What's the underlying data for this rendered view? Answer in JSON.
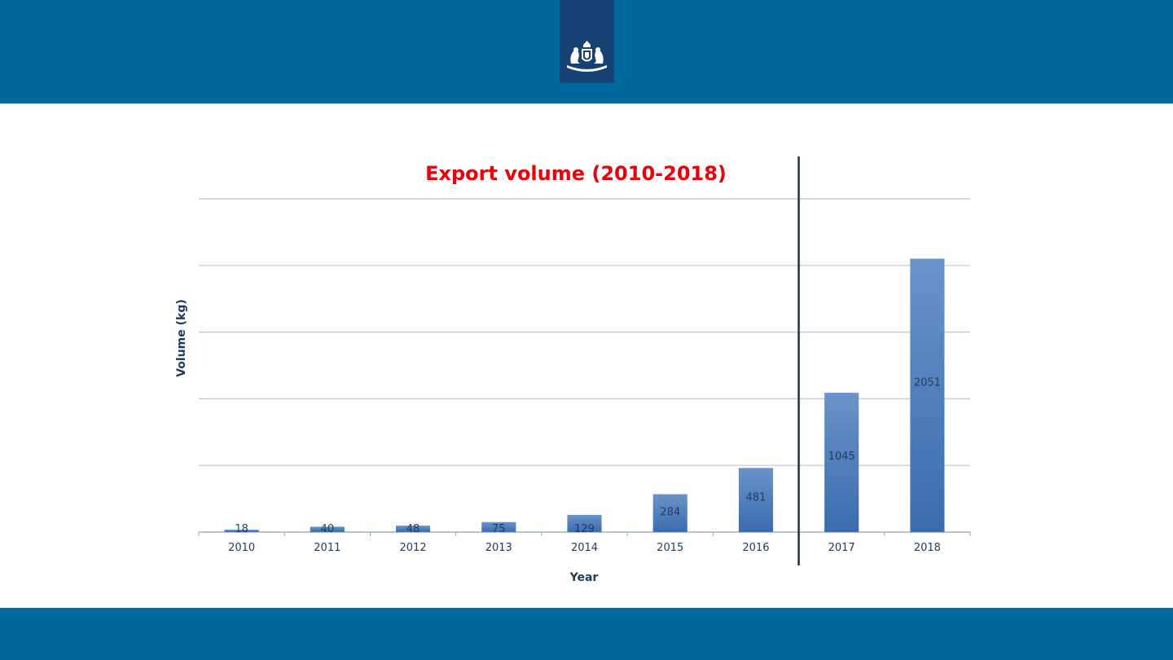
{
  "colors": {
    "band": "#01689b",
    "logo_bg": "#154273",
    "title": "#e8000b",
    "bar_top": "#6a93c8",
    "bar_bottom": "#3a6cae",
    "axis_text": "#1f3b5c",
    "value_text": "#1f3b5c",
    "grid": "#b9c7d3",
    "divider": "#1f2f44"
  },
  "logo": {
    "icon": "royal-coat-of-arms-icon"
  },
  "chart_data": {
    "type": "bar",
    "title": "Export volume (2010-2018)",
    "xlabel": "Year",
    "ylabel": "Volume (kg)",
    "categories": [
      "2010",
      "2011",
      "2012",
      "2013",
      "2014",
      "2015",
      "2016",
      "2017",
      "2018"
    ],
    "values": [
      18,
      40,
      48,
      75,
      129,
      284,
      481,
      1045,
      2051
    ],
    "data_labels": [
      "18",
      "40",
      "48",
      "75",
      "129",
      "284",
      "481",
      "1045",
      "2051"
    ],
    "ylim": [
      0,
      2500
    ],
    "grid": true,
    "legend": "none",
    "divider_between": [
      "2016",
      "2017"
    ]
  }
}
